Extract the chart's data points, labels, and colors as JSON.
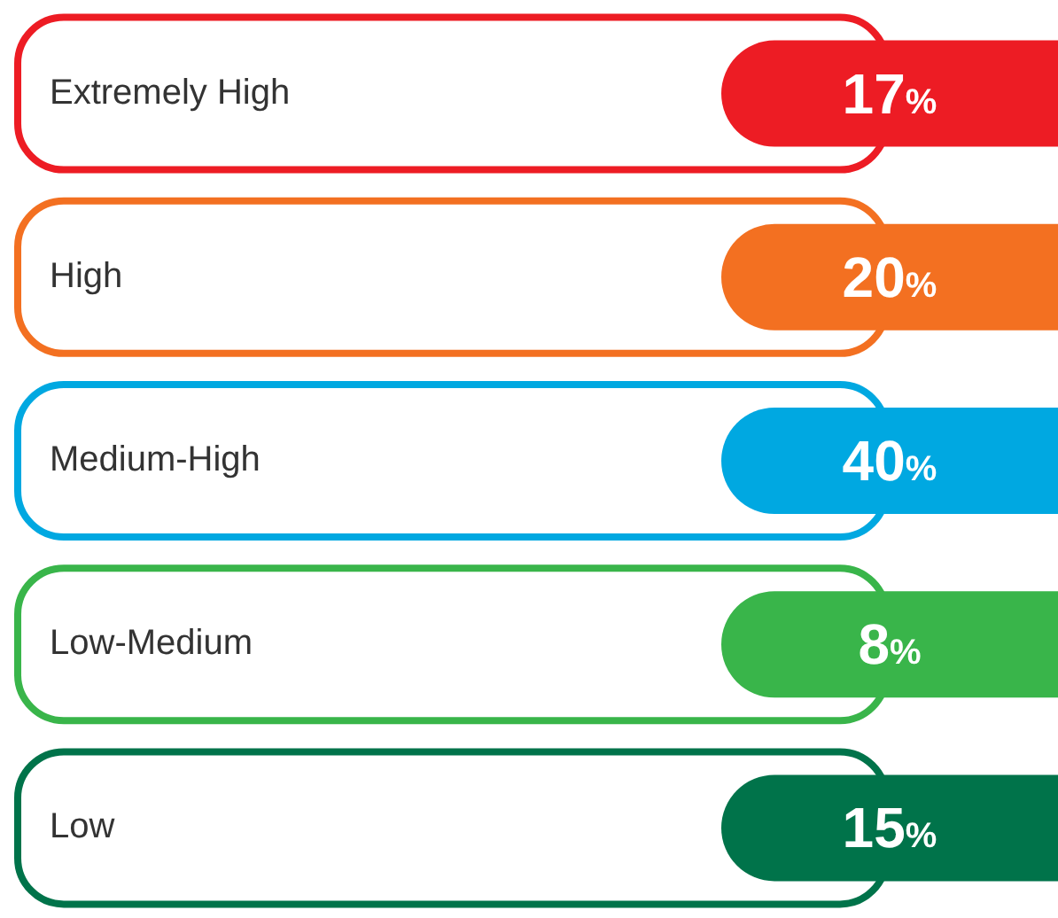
{
  "chart_data": {
    "type": "other",
    "categories": [
      "Extremely High",
      "High",
      "Medium-High",
      "Low-Medium",
      "Low"
    ],
    "values": [
      17,
      20,
      40,
      8,
      15
    ],
    "value_labels": [
      "17%",
      "20%",
      "40%",
      "8%",
      "15%"
    ],
    "colors": [
      "#ed1c24",
      "#f37021",
      "#00a8e1",
      "#39b54a",
      "#00734a"
    ]
  }
}
